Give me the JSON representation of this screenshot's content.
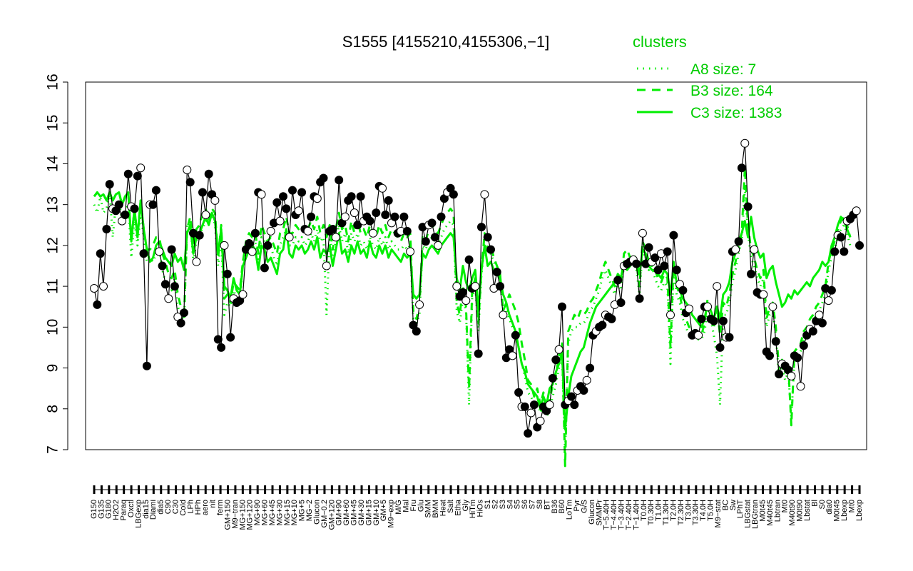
{
  "chart_data": {
    "type": "line",
    "title": "S1555 [4155210,4155306,−1]",
    "xlabel": "",
    "ylabel": "",
    "ylim": [
      7,
      16
    ],
    "yticks": [
      7,
      8,
      9,
      10,
      11,
      12,
      13,
      14,
      15,
      16
    ],
    "categories_visible": [
      "G150",
      "G135",
      "G180",
      "H2O2",
      "Paraq",
      "Oxctl",
      "LBGexp",
      "dia15",
      "Diami",
      "dia5",
      "C90",
      "C30",
      "Cold",
      "LPh",
      "HPh",
      "aero",
      "nit",
      "ferm",
      "GM+150",
      "M9−tran",
      "MG+150",
      "MG+120",
      "MG+90",
      "MG+60",
      "MG+45",
      "MG+30",
      "MG+15",
      "MG+10",
      "MG+5",
      "MG−2",
      "Glucon",
      "GM−0.2",
      "GM+120",
      "GM+90",
      "GM+60",
      "GM+45",
      "GM+30",
      "GM+15",
      "GM+10",
      "GM+5",
      "M9−exp",
      "M/G",
      "Mal",
      "Fru",
      "Glu",
      "SMM",
      "BMM",
      "Heat",
      "Salt",
      "Etha",
      "Gly",
      "HiTm",
      "HiOs",
      "S1",
      "S2",
      "S3",
      "S4",
      "S5",
      "S6",
      "S7",
      "S8",
      "BT",
      "B36",
      "B60",
      "LoTm",
      "Pyr",
      "G/S",
      "Glucon",
      "SMMPr",
      "T−5.40H",
      "T−4.40H",
      "T−3.40H",
      "T−2.40H",
      "T−1.40H",
      "T0.0H",
      "T0.30H",
      "T1.0H",
      "T1.30H",
      "T2.0H",
      "T2.30H",
      "T3.0H",
      "T3.30H",
      "T4.0H",
      "T5.0H",
      "M9−stat",
      "BC",
      "Sw",
      "LPhT",
      "LBGstat",
      "LBGtran",
      "M0t45",
      "M40t45",
      "Lbtran",
      "Mt0",
      "M40t90",
      "M0t90",
      "Lbstat",
      "Bl",
      "S0",
      "dia0",
      "M0t45",
      "Lbexp",
      "Mt0",
      "Lbexp"
    ],
    "legend": {
      "title": "clusters",
      "position": "top-right",
      "entries": [
        {
          "label": "A8 size: 7",
          "style": "dotted"
        },
        {
          "label": "B3 size: 164",
          "style": "dashed"
        },
        {
          "label": "C3 size: 1383",
          "style": "solid"
        }
      ]
    },
    "colors": {
      "main": "#000000",
      "cluster": "#00ee00",
      "legend": "#00cc00"
    },
    "series": [
      {
        "name": "S1555",
        "values": [
          10.95,
          10.55,
          11.8,
          11.0,
          12.4,
          13.5,
          12.9,
          12.85,
          13.0,
          12.6,
          12.75,
          13.75,
          12.95,
          12.9,
          13.7,
          13.9,
          11.8,
          9.05,
          13.0,
          13.0,
          13.35,
          11.85,
          11.5,
          11.05,
          10.7,
          11.9,
          11.0,
          10.25,
          10.1,
          10.35,
          13.85,
          13.55,
          12.3,
          11.6,
          12.25,
          13.3,
          12.75,
          13.75,
          13.25,
          13.1,
          9.7,
          9.5,
          12.0,
          11.3,
          9.75,
          10.7,
          10.6,
          10.65,
          10.8,
          11.9,
          12.05,
          11.85,
          12.3,
          13.3,
          13.25,
          11.45,
          12.0,
          12.35,
          12.55,
          13.05,
          12.6,
          13.2,
          12.9,
          12.2,
          13.35,
          12.75,
          12.85,
          13.3,
          12.4,
          12.35,
          12.7,
          13.2,
          13.15,
          13.55,
          13.65,
          11.5,
          12.35,
          12.4,
          12.2,
          13.6,
          12.55,
          12.7,
          13.1,
          13.2,
          12.8,
          12.5,
          13.2,
          12.6,
          12.7,
          12.6,
          12.3,
          12.8,
          13.45,
          13.4,
          12.75,
          13.1,
          12.55,
          12.7,
          12.3,
          12.35,
          12.7,
          12.35,
          11.85,
          10.05,
          9.9,
          10.55,
          12.45,
          12.1,
          12.5,
          12.55,
          12.2,
          12.0,
          12.7,
          13.15,
          13.3,
          13.4,
          13.25,
          11.0,
          10.75,
          10.85,
          10.65,
          11.65,
          10.95,
          11.0,
          9.35,
          12.45,
          13.25,
          12.2,
          11.9,
          10.95,
          11.35,
          11.0,
          10.3,
          9.25,
          9.45,
          9.3,
          9.8,
          8.4,
          8.05,
          8.05,
          7.4,
          7.9,
          8.1,
          7.55,
          7.7,
          8.05,
          7.95,
          8.1,
          8.75,
          9.2,
          9.45,
          10.5,
          8.1,
          8.2,
          8.3,
          8.1,
          8.45,
          8.55,
          8.45,
          8.7,
          9.0,
          9.8,
          9.9,
          10.0,
          10.05,
          10.3,
          10.25,
          10.2,
          10.55,
          11.15,
          10.6,
          11.5,
          11.55,
          11.6,
          11.65,
          11.55,
          10.7,
          12.3,
          11.55,
          11.95,
          11.6,
          11.7,
          11.4,
          11.8,
          11.5,
          11.85,
          10.3,
          12.25,
          11.4,
          11.05,
          10.9,
          10.35,
          10.45,
          9.8,
          9.85,
          9.8,
          10.2,
          10.5,
          10.5,
          10.2,
          10.15,
          11.0,
          9.5,
          10.15,
          9.75,
          9.75,
          11.85,
          11.9,
          12.1,
          13.9,
          14.5,
          12.95,
          11.3,
          11.9,
          10.85,
          10.8,
          10.8,
          9.4,
          9.3,
          10.5,
          9.65,
          8.85,
          9.1,
          9.05,
          8.95,
          8.8,
          9.3,
          9.25,
          8.55,
          9.55,
          9.8,
          9.95,
          9.9,
          10.15,
          10.3,
          10.1,
          10.95,
          10.65,
          10.9,
          11.85,
          12.25,
          12.2,
          11.85,
          12.6,
          12.65,
          12.75,
          12.85,
          12.0
        ]
      },
      {
        "name": "C3 size: 1383",
        "values": [
          13.2,
          13.3,
          13.2,
          13.25,
          13.1,
          13.3,
          13.1,
          13.25,
          13.3,
          13.0,
          13.2,
          13.3,
          12.1,
          12.9,
          12.2,
          13.1,
          12.4,
          11.9,
          11.6,
          11.7,
          12.0,
          12.1,
          11.9,
          11.7,
          11.6,
          11.5,
          11.8,
          11.6,
          11.7,
          11.4,
          12.3,
          12.5,
          11.8,
          12.2,
          12.3,
          12.5,
          12.7,
          12.5,
          12.8,
          12.6,
          11.8,
          12.4,
          11.0,
          10.9,
          10.7,
          11.2,
          10.9,
          10.8,
          11.5,
          11.7,
          11.9,
          12.0,
          11.9,
          11.4,
          12.0,
          11.9,
          11.6,
          11.7,
          11.5,
          11.3,
          11.8,
          11.9,
          12.4,
          11.8,
          11.7,
          12.0,
          11.9,
          12.0,
          11.8,
          11.9,
          12.1,
          11.9,
          12.2,
          11.7,
          11.9,
          11.8,
          12.0,
          11.5,
          11.9,
          12.3,
          11.8,
          11.9,
          11.6,
          12.0,
          11.8,
          12.1,
          11.8,
          11.9,
          11.7,
          12.1,
          11.8,
          11.7,
          12.0,
          11.8,
          12.0,
          11.7,
          11.9,
          11.8,
          11.7,
          11.6,
          11.8,
          11.7,
          11.8,
          10.8,
          10.7,
          10.8,
          11.8,
          11.7,
          11.9,
          12.0,
          11.9,
          11.8,
          12.0,
          12.1,
          12.2,
          12.3,
          12.2,
          11.2,
          10.9,
          11.5,
          11.1,
          10.9,
          11.2,
          11.4,
          10.4,
          11.4,
          12.0,
          11.5,
          11.6,
          11.4,
          11.3,
          11.2,
          10.8,
          10.6,
          10.3,
          10.1,
          9.9,
          9.5,
          9.1,
          8.9,
          8.6,
          8.5,
          8.4,
          8.3,
          8.0,
          8.3,
          8.1,
          8.5,
          8.6,
          8.9,
          9.1,
          9.4,
          7.5,
          8.3,
          8.8,
          9.0,
          9.2,
          9.4,
          9.5,
          9.8,
          10.1,
          10.3,
          10.5,
          10.6,
          10.7,
          10.8,
          10.9,
          11.0,
          11.1,
          11.3,
          11.2,
          11.6,
          11.4,
          11.5,
          11.7,
          11.6,
          11.3,
          11.9,
          11.8,
          11.5,
          11.4,
          11.4,
          11.3,
          11.2,
          11.4,
          11.3,
          10.8,
          11.5,
          11.1,
          10.9,
          10.7,
          10.6,
          10.5,
          10.3,
          10.2,
          10.1,
          10.0,
          10.2,
          10.6,
          10.4,
          10.2,
          10.5,
          10.2,
          10.8,
          10.9,
          11.1,
          11.6,
          11.8,
          12.1,
          12.3,
          12.6,
          12.2,
          12.7,
          12.2,
          11.9,
          11.7,
          11.8,
          11.2,
          11.4,
          11.5,
          11.1,
          10.8,
          10.5,
          10.6,
          10.8,
          10.7,
          10.9,
          10.8,
          10.9,
          11.0,
          11.1,
          11.0,
          11.2,
          11.3,
          11.4,
          11.6,
          11.5,
          11.6,
          12.0,
          12.2,
          12.5,
          12.7,
          12.6,
          12.4,
          12.2
        ]
      },
      {
        "name": "B3 size: 164",
        "values": [
          13.2,
          13.3,
          13.2,
          13.25,
          13.1,
          13.3,
          13.1,
          13.25,
          13.3,
          13.0,
          13.2,
          13.3,
          12.1,
          12.9,
          12.2,
          13.1,
          12.4,
          11.9,
          11.9,
          12.0,
          12.2,
          12.2,
          11.8,
          11.6,
          11.3,
          11.2,
          11.4,
          10.8,
          10.5,
          10.2,
          12.4,
          12.7,
          12.0,
          12.4,
          12.5,
          12.8,
          12.9,
          12.6,
          12.9,
          12.8,
          11.7,
          12.5,
          10.7,
          10.8,
          10.6,
          11.1,
          11.0,
          10.9,
          11.6,
          12.1,
          12.3,
          12.2,
          12.3,
          11.8,
          12.5,
          12.3,
          12.1,
          12.2,
          12.0,
          11.8,
          12.3,
          12.4,
          12.7,
          12.3,
          12.3,
          12.5,
          12.4,
          12.5,
          12.3,
          12.4,
          12.6,
          12.4,
          12.7,
          12.3,
          12.5,
          12.2,
          12.5,
          11.9,
          12.4,
          12.8,
          12.4,
          12.5,
          12.1,
          12.6,
          12.3,
          12.6,
          12.3,
          12.4,
          12.2,
          12.5,
          12.3,
          12.2,
          12.5,
          12.3,
          12.5,
          12.2,
          12.4,
          12.3,
          12.2,
          12.1,
          12.3,
          12.2,
          12.3,
          10.4,
          10.2,
          10.5,
          12.2,
          12.1,
          12.4,
          12.5,
          12.4,
          12.3,
          12.5,
          12.7,
          12.8,
          12.9,
          12.8,
          10.6,
          10.3,
          11.0,
          10.5,
          8.5,
          10.9,
          11.2,
          10.1,
          11.4,
          12.3,
          11.9,
          12.0,
          11.7,
          11.5,
          11.3,
          10.4,
          10.6,
          10.8,
          10.6,
          10.4,
          10.1,
          9.6,
          9.2,
          8.7,
          8.6,
          8.3,
          8.5,
          8.1,
          8.4,
          8.0,
          8.2,
          8.6,
          8.8,
          9.3,
          9.6,
          6.6,
          9.9,
          10.1,
          10.3,
          10.2,
          10.4,
          10.3,
          10.4,
          10.6,
          10.7,
          10.9,
          11.1,
          11.4,
          11.6,
          11.4,
          11.2,
          11.0,
          11.3,
          11.1,
          11.8,
          11.9,
          11.7,
          11.8,
          11.6,
          11.0,
          12.1,
          11.9,
          11.6,
          11.7,
          11.4,
          11.2,
          11.1,
          11.3,
          11.2,
          9.5,
          11.6,
          11.0,
          10.8,
          10.4,
          10.2,
          10.0,
          10.0,
          9.9,
          9.8,
          9.8,
          10.1,
          10.7,
          10.4,
          10.0,
          10.5,
          9.8,
          10.6,
          10.5,
          10.8,
          11.3,
          11.6,
          12.0,
          12.3,
          13.9,
          12.5,
          11.9,
          11.7,
          11.4,
          11.2,
          11.4,
          10.2,
          10.5,
          10.6,
          10.0,
          9.0,
          9.2,
          8.9,
          9.1,
          7.6,
          9.4,
          9.5,
          9.6,
          9.9,
          10.0,
          10.2,
          10.3,
          10.5,
          10.6,
          10.8,
          11.0,
          11.6,
          11.9,
          12.1,
          12.4,
          12.6,
          12.7,
          12.5,
          12.2
        ]
      },
      {
        "name": "A8 size: 7",
        "values": [
          13.0,
          12.8,
          13.2,
          12.8,
          12.9,
          13.3,
          12.2,
          13.0,
          13.1,
          12.6,
          12.9,
          13.0,
          11.7,
          12.6,
          12.0,
          12.8,
          12.2,
          11.6,
          11.7,
          11.6,
          11.8,
          11.9,
          11.4,
          11.1,
          11.0,
          10.9,
          11.2,
          10.5,
          10.3,
          10.1,
          12.5,
          12.6,
          11.6,
          12.1,
          12.3,
          12.4,
          12.6,
          12.6,
          12.8,
          12.5,
          11.5,
          12.2,
          10.3,
          10.6,
          10.5,
          10.9,
          10.7,
          10.6,
          11.6,
          11.9,
          12.1,
          12.0,
          12.1,
          11.6,
          12.2,
          12.1,
          11.9,
          12.0,
          11.7,
          11.5,
          12.0,
          12.2,
          12.4,
          12.0,
          12.0,
          12.2,
          12.1,
          12.2,
          12.0,
          12.1,
          12.3,
          12.1,
          12.4,
          12.1,
          12.2,
          10.3,
          12.2,
          11.7,
          12.1,
          12.5,
          12.1,
          12.3,
          11.8,
          12.3,
          12.1,
          12.3,
          12.0,
          12.1,
          11.9,
          12.2,
          12.0,
          11.9,
          12.2,
          12.0,
          12.2,
          11.9,
          12.1,
          12.0,
          11.9,
          11.9,
          12.0,
          11.9,
          12.0,
          10.2,
          10.1,
          10.3,
          12.0,
          11.9,
          12.1,
          12.2,
          12.1,
          12.0,
          12.2,
          12.4,
          12.5,
          12.6,
          12.5,
          10.4,
          10.1,
          10.7,
          10.4,
          8.1,
          10.7,
          11.0,
          9.9,
          11.3,
          12.0,
          11.8,
          11.8,
          11.6,
          11.4,
          11.2,
          10.3,
          10.4,
          10.2,
          10.0,
          9.8,
          9.5,
          9.1,
          8.8,
          8.4,
          8.3,
          8.1,
          8.2,
          7.9,
          8.1,
          7.8,
          8.0,
          8.3,
          8.6,
          9.0,
          9.3,
          6.9,
          9.6,
          9.9,
          10.0,
          10.0,
          10.1,
          10.1,
          10.2,
          10.4,
          10.5,
          10.7,
          10.9,
          11.2,
          11.4,
          11.2,
          11.0,
          10.8,
          11.1,
          10.9,
          11.5,
          11.7,
          11.5,
          11.6,
          11.4,
          10.8,
          11.9,
          11.7,
          11.4,
          11.5,
          11.2,
          11.0,
          10.9,
          11.1,
          11.0,
          9.1,
          11.4,
          10.8,
          10.6,
          10.2,
          10.0,
          9.8,
          9.9,
          9.8,
          9.7,
          9.7,
          9.9,
          10.4,
          10.2,
          9.8,
          9.3,
          8.1,
          10.3,
          10.3,
          10.6,
          11.1,
          11.4,
          11.8,
          12.1,
          13.4,
          12.3,
          11.7,
          11.5,
          11.2,
          11.0,
          11.2,
          10.0,
          10.3,
          10.4,
          9.8,
          8.8,
          9.0,
          8.7,
          8.9,
          7.8,
          9.2,
          9.3,
          9.4,
          9.7,
          9.8,
          10.0,
          10.1,
          10.3,
          10.4,
          10.6,
          10.8,
          11.4,
          11.7,
          11.9,
          12.2,
          12.4,
          12.5,
          12.3,
          12.0
        ]
      }
    ]
  }
}
